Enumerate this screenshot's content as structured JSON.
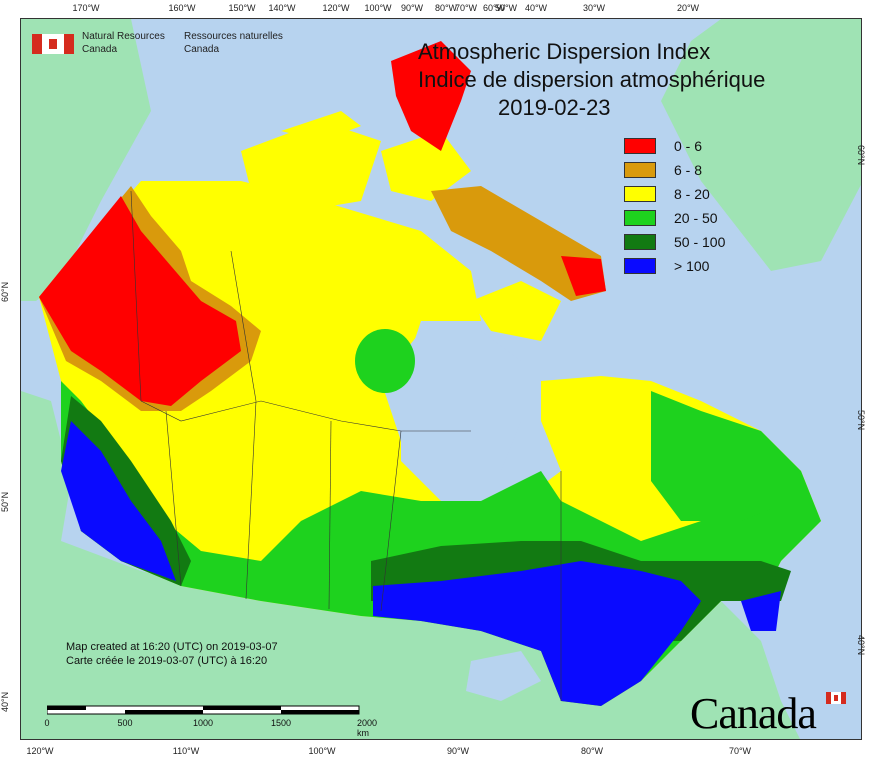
{
  "title": {
    "line1": "Atmospheric Dispersion Index",
    "line2": "Indice de dispersion atmosphérique",
    "date": "2019-02-23"
  },
  "org": {
    "en_line1": "Natural Resources",
    "en_line2": "Canada",
    "fr_line1": "Ressources naturelles",
    "fr_line2": "Canada"
  },
  "legend": [
    {
      "label": "0 - 6",
      "color": "#ff0000"
    },
    {
      "label": "6 - 8",
      "color": "#d99a0c"
    },
    {
      "label": "8 - 20",
      "color": "#ffff00"
    },
    {
      "label": "20 - 50",
      "color": "#1ed21e"
    },
    {
      "label": "50 - 100",
      "color": "#127a12"
    },
    {
      "label": "> 100",
      "color": "#0a0aff"
    }
  ],
  "credits": {
    "line1": "Map created at 16:20 (UTC) on 2019-03-07",
    "line2": "Carte créée le 2019-03-07 (UTC) à 16:20"
  },
  "scale_bar": {
    "labels": [
      "0",
      "500",
      "1000",
      "1500",
      "2000  km"
    ]
  },
  "top_ticks": [
    "170°W",
    "160°W",
    "150°W",
    "140°W",
    "120°W",
    "100°W",
    "90°W",
    "80°W",
    "70°W",
    "60°W",
    "50°W",
    "40°W",
    "30°W",
    "20°W"
  ],
  "bottom_ticks": [
    "120°W",
    "110°W",
    "100°W",
    "90°W",
    "80°W",
    "70°W"
  ],
  "left_ticks": [
    "60°N",
    "50°N",
    "40°N"
  ],
  "right_ticks": [
    "60°N",
    "50°N",
    "40°N"
  ],
  "wordmark": "Canada",
  "colors": {
    "ocean": "#b7d3ef",
    "land_outside": "#9fe3b4",
    "water_inland": "#b7d3ef"
  }
}
